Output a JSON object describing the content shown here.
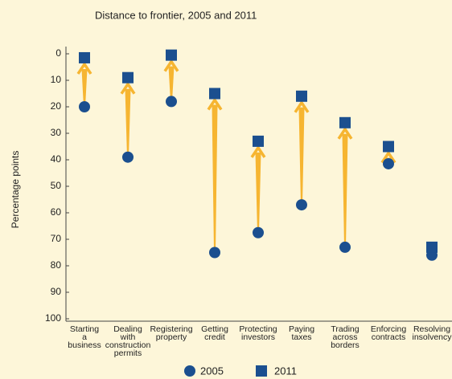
{
  "chart_data": {
    "type": "dot_arrow",
    "title": "Distance to frontier, 2005 and 2011",
    "y_label": "Percentage points",
    "categories": [
      "Starting a business",
      "Dealing with construction permits",
      "Registering property",
      "Getting credit",
      "Protecting investors",
      "Paying taxes",
      "Trading across borders",
      "Enforcing contracts",
      "Resolving insolvency"
    ],
    "series": [
      {
        "name": "2005",
        "color": "#1b4f8f",
        "marker": "circle",
        "values": [
          20,
          39,
          18,
          75,
          67.5,
          57,
          73,
          41.5,
          76
        ]
      },
      {
        "name": "2011",
        "color": "#1b4f8f",
        "marker": "square",
        "values": [
          1.5,
          9,
          0.5,
          15,
          33,
          16,
          26,
          35,
          73
        ]
      }
    ],
    "arrow_color": "#f6b531",
    "ylim": [
      0,
      100
    ],
    "y_inverted": true,
    "yticks": [
      0,
      10,
      20,
      30,
      40,
      50,
      60,
      70,
      80,
      90,
      100
    ]
  }
}
